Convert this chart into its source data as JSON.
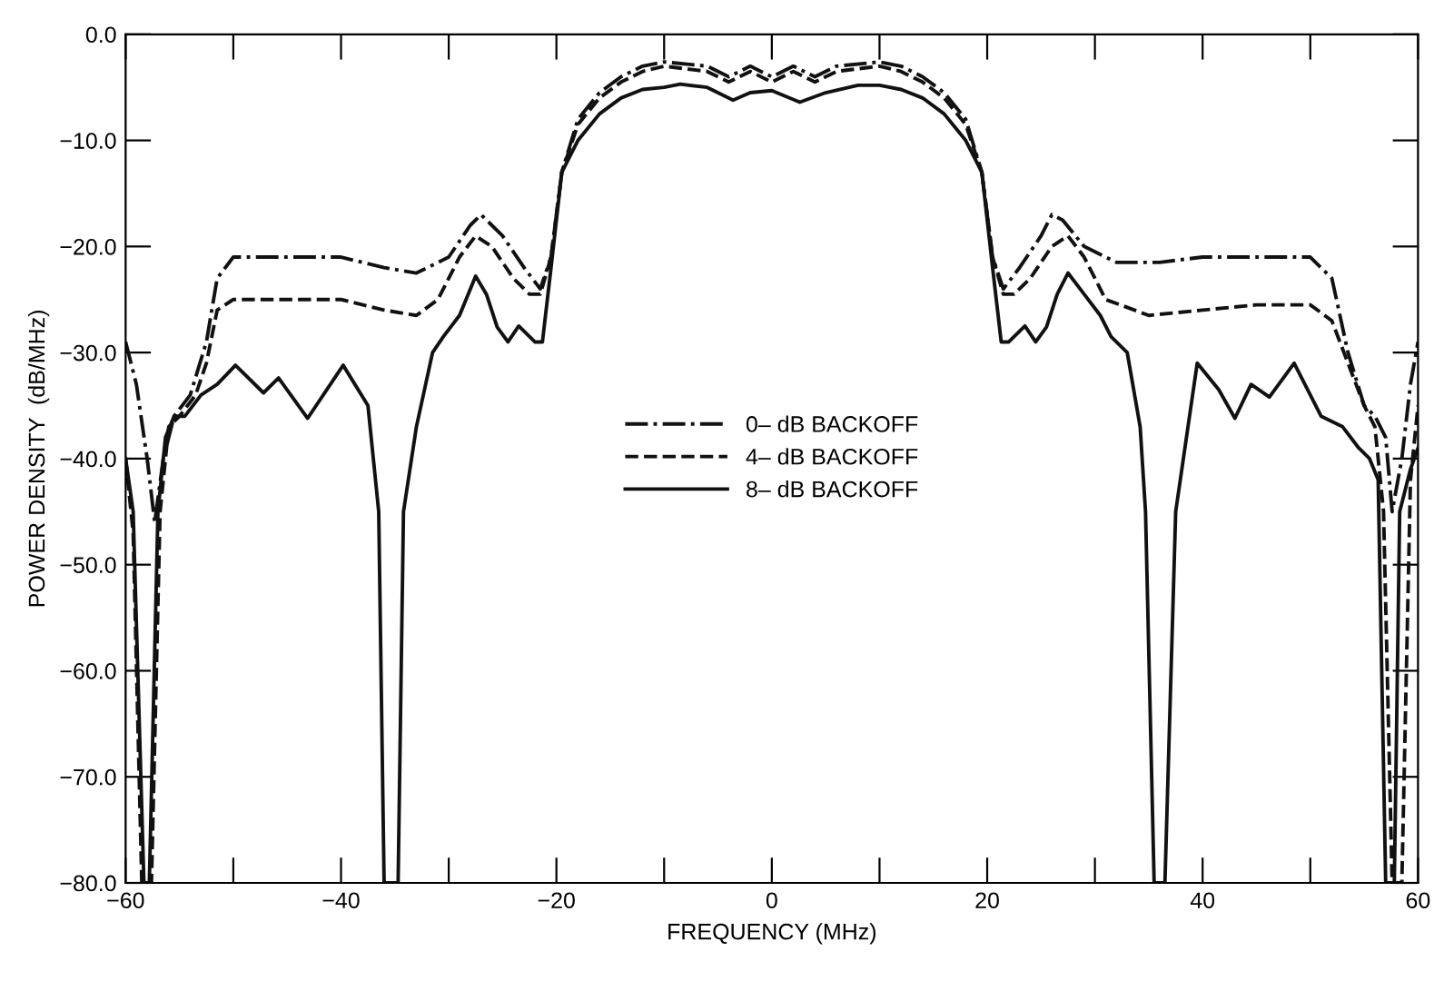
{
  "chart_data": {
    "type": "line",
    "xlabel": "FREQUENCY (MHz)",
    "ylabel": "POWER DENSITY  (dB/MHz)",
    "xlim": [
      -60,
      60
    ],
    "ylim": [
      -80,
      0
    ],
    "xticks": [
      {
        "value": -60,
        "label": "−60"
      },
      {
        "value": -50,
        "label": null
      },
      {
        "value": -40,
        "label": "−40"
      },
      {
        "value": -30,
        "label": null
      },
      {
        "value": -20,
        "label": "−20"
      },
      {
        "value": -10,
        "label": null
      },
      0,
      {
        "value": 10,
        "label": null
      },
      20,
      {
        "value": 30,
        "label": null
      },
      40,
      {
        "value": 50,
        "label": null
      },
      60
    ],
    "yticks": [
      {
        "value": 0,
        "label": "0.0"
      },
      {
        "value": -10,
        "label": "−10.0"
      },
      {
        "value": -20,
        "label": "−20.0"
      },
      {
        "value": -30,
        "label": "−30.0"
      },
      {
        "value": -40,
        "label": "−40.0"
      },
      {
        "value": -50,
        "label": "−50.0"
      },
      {
        "value": -60,
        "label": "−60.0"
      },
      {
        "value": -70,
        "label": "−70.0"
      },
      {
        "value": -80,
        "label": "−80.0"
      }
    ],
    "grid": false,
    "legend": "center",
    "marker": "none",
    "series": [
      {
        "name": "0– dB BACKOFF",
        "color": "#111111",
        "line_style": "dashdot",
        "x": [
          -60,
          -59,
          -58,
          -57.3,
          -56.5,
          -55.5,
          -54,
          -52.5,
          -51.5,
          -50,
          -45,
          -40,
          -36,
          -33,
          -30,
          -28,
          -27,
          -25,
          -23,
          -21.5,
          -20.5,
          -19.5,
          -18,
          -16,
          -14,
          -12,
          -10,
          -6,
          -4,
          -2,
          0,
          2,
          4,
          6,
          10,
          12,
          14,
          16,
          18,
          19.5,
          20.5,
          21.5,
          23,
          25,
          26,
          27,
          29,
          32,
          36,
          40,
          45,
          50,
          52,
          53.5,
          55,
          56,
          57,
          57.6,
          58.5,
          59.3,
          60
        ],
        "values": [
          -29,
          -33,
          -40,
          -46,
          -40,
          -36,
          -34,
          -29,
          -23,
          -21,
          -21,
          -21,
          -22,
          -22.5,
          -21,
          -18,
          -17,
          -19,
          -22,
          -24,
          -21,
          -13,
          -8,
          -5.5,
          -4,
          -3,
          -2.6,
          -3,
          -4,
          -3,
          -4,
          -3,
          -4,
          -3,
          -2.6,
          -3,
          -4,
          -5.5,
          -8,
          -13,
          -21,
          -24,
          -22,
          -19,
          -17,
          -17.5,
          -20,
          -21.5,
          -21.5,
          -21,
          -21,
          -21,
          -23,
          -30,
          -35,
          -36,
          -38,
          -45,
          -40,
          -33,
          -29
        ]
      },
      {
        "name": "4– dB BACKOFF",
        "color": "#111111",
        "line_style": "dashed",
        "x": [
          -60,
          -59.3,
          -58.5,
          -57.6,
          -56.8,
          -56,
          -55,
          -53.5,
          -52.5,
          -51.5,
          -50,
          -45,
          -40,
          -36,
          -33,
          -31,
          -29,
          -27.5,
          -26,
          -24,
          -22.5,
          -21.5,
          -20.5,
          -19.5,
          -18,
          -16,
          -14,
          -12,
          -10,
          -6,
          -4,
          -2,
          0,
          2,
          4,
          6,
          10,
          12,
          14,
          16,
          18,
          19.5,
          20.5,
          21.5,
          22.5,
          24,
          26,
          27.5,
          29,
          31,
          35,
          40,
          45,
          50,
          52,
          53.5,
          55,
          56,
          56.8,
          57.6,
          58.5,
          59.3,
          60
        ],
        "values": [
          -40,
          -47,
          -80,
          -80,
          -45,
          -37,
          -36,
          -34,
          -31,
          -26,
          -25,
          -25,
          -25,
          -26,
          -26.5,
          -25,
          -21,
          -19,
          -20,
          -23,
          -24.5,
          -24.5,
          -21,
          -13,
          -8.5,
          -6,
          -4.5,
          -3.5,
          -3,
          -3.5,
          -4.5,
          -3.5,
          -4.5,
          -3.5,
          -4.5,
          -3.5,
          -3,
          -3.5,
          -4.5,
          -6,
          -8.5,
          -13,
          -21,
          -24.5,
          -24.5,
          -23,
          -20,
          -19,
          -21,
          -25,
          -26.5,
          -26,
          -25.5,
          -25.5,
          -27,
          -31,
          -35,
          -37,
          -45,
          -80,
          -80,
          -42,
          -35
        ]
      },
      {
        "name": "8– dB BACKOFF",
        "color": "#111111",
        "line_style": "solid",
        "x": [
          -60,
          -59.3,
          -58.3,
          -57.8,
          -57,
          -56.3,
          -55.5,
          -54.5,
          -53,
          -51.5,
          -49.8,
          -47.2,
          -45.8,
          -43.1,
          -39.8,
          -37.5,
          -36.5,
          -36,
          -35.5,
          -34.7,
          -34.2,
          -33,
          -31.5,
          -30.5,
          -29,
          -27.5,
          -26.5,
          -25.5,
          -24.5,
          -23.5,
          -22,
          -21.3,
          -20.5,
          -19.5,
          -18,
          -16,
          -14,
          -12,
          -10,
          -8.5,
          -6,
          -3.6,
          -2,
          0,
          2.6,
          5,
          8,
          10,
          12,
          14,
          16,
          18,
          19.5,
          20.5,
          21.3,
          22,
          23.5,
          24.5,
          25.5,
          26.5,
          27.5,
          29,
          30.5,
          31.5,
          33,
          34.2,
          34.7,
          35.5,
          36,
          36.5,
          37.5,
          39.5,
          41.5,
          43,
          44.5,
          46.2,
          48.5,
          51,
          53,
          54.5,
          55.5,
          56.3,
          57,
          57.8,
          58.3,
          59.3,
          60
        ],
        "values": [
          -40,
          -45,
          -80,
          -80,
          -45,
          -38,
          -36,
          -36,
          -34,
          -33,
          -31.2,
          -33.8,
          -32.4,
          -36.2,
          -31.2,
          -35,
          -45,
          -80,
          -80,
          -80,
          -45,
          -37,
          -30,
          -28.5,
          -26.5,
          -22.8,
          -24.5,
          -27.6,
          -29,
          -27.5,
          -29,
          -29,
          -22,
          -13,
          -10,
          -7.5,
          -6,
          -5.2,
          -5,
          -4.7,
          -5,
          -6.2,
          -5.5,
          -5.3,
          -6.4,
          -5.5,
          -4.8,
          -4.8,
          -5.2,
          -6,
          -7.5,
          -10,
          -13,
          -22,
          -29,
          -29,
          -27.5,
          -29,
          -27.6,
          -24.5,
          -22.5,
          -24.5,
          -26.5,
          -28.5,
          -30,
          -37,
          -45,
          -80,
          -80,
          -80,
          -45,
          -31,
          -33.5,
          -36.2,
          -33,
          -34.2,
          -31,
          -36,
          -37,
          -39,
          -40,
          -42,
          -80,
          -80,
          -45,
          -41,
          -39
        ]
      }
    ]
  }
}
